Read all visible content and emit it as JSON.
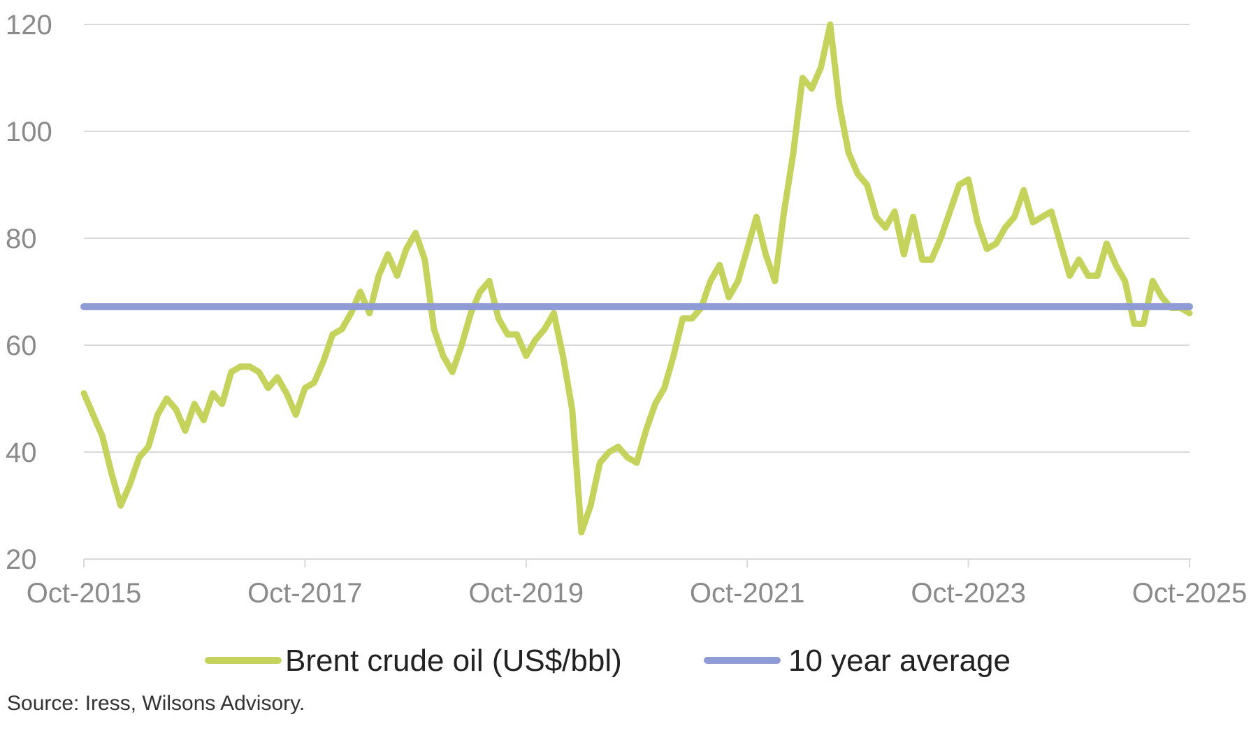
{
  "chart_data": {
    "type": "line",
    "title": "",
    "xlabel": "",
    "ylabel": "",
    "ylim": [
      20,
      120
    ],
    "xlim": [
      "2015-10",
      "2025-10"
    ],
    "yticks": [
      "20",
      "40",
      "60",
      "80",
      "100",
      "120"
    ],
    "xticks": [
      "Oct-2015",
      "Oct-2017",
      "Oct-2019",
      "Oct-2021",
      "Oct-2023",
      "Oct-2025"
    ],
    "grid": true,
    "legend_position": "bottom",
    "series": [
      {
        "name": "Brent crude oil (US$/bbl)",
        "color": "#c5d35d",
        "points": [
          [
            "2015-10",
            51
          ],
          [
            "2015-11",
            47
          ],
          [
            "2015-12",
            43
          ],
          [
            "2016-01",
            36
          ],
          [
            "2016-02",
            30
          ],
          [
            "2016-03",
            34
          ],
          [
            "2016-04",
            39
          ],
          [
            "2016-05",
            41
          ],
          [
            "2016-06",
            47
          ],
          [
            "2016-07",
            50
          ],
          [
            "2016-08",
            48
          ],
          [
            "2016-09",
            44
          ],
          [
            "2016-10",
            49
          ],
          [
            "2016-11",
            46
          ],
          [
            "2016-12",
            51
          ],
          [
            "2017-01",
            49
          ],
          [
            "2017-02",
            55
          ],
          [
            "2017-03",
            56
          ],
          [
            "2017-04",
            56
          ],
          [
            "2017-05",
            55
          ],
          [
            "2017-06",
            52
          ],
          [
            "2017-07",
            54
          ],
          [
            "2017-08",
            51
          ],
          [
            "2017-09",
            47
          ],
          [
            "2017-10",
            52
          ],
          [
            "2017-11",
            53
          ],
          [
            "2017-12",
            57
          ],
          [
            "2018-01",
            62
          ],
          [
            "2018-02",
            63
          ],
          [
            "2018-03",
            66
          ],
          [
            "2018-04",
            70
          ],
          [
            "2018-05",
            66
          ],
          [
            "2018-06",
            73
          ],
          [
            "2018-07",
            77
          ],
          [
            "2018-08",
            73
          ],
          [
            "2018-09",
            78
          ],
          [
            "2018-10",
            81
          ],
          [
            "2018-11",
            76
          ],
          [
            "2018-12",
            63
          ],
          [
            "2019-01",
            58
          ],
          [
            "2019-02",
            55
          ],
          [
            "2019-03",
            60
          ],
          [
            "2019-04",
            66
          ],
          [
            "2019-05",
            70
          ],
          [
            "2019-06",
            72
          ],
          [
            "2019-07",
            65
          ],
          [
            "2019-08",
            62
          ],
          [
            "2019-09",
            62
          ],
          [
            "2019-10",
            58
          ],
          [
            "2019-11",
            61
          ],
          [
            "2019-12",
            63
          ],
          [
            "2020-01",
            66
          ],
          [
            "2020-02",
            58
          ],
          [
            "2020-03",
            48
          ],
          [
            "2020-04",
            25
          ],
          [
            "2020-05",
            30
          ],
          [
            "2020-06",
            38
          ],
          [
            "2020-07",
            40
          ],
          [
            "2020-08",
            41
          ],
          [
            "2020-09",
            39
          ],
          [
            "2020-10",
            38
          ],
          [
            "2020-11",
            44
          ],
          [
            "2020-12",
            49
          ],
          [
            "2021-01",
            52
          ],
          [
            "2021-02",
            58
          ],
          [
            "2021-03",
            65
          ],
          [
            "2021-04",
            65
          ],
          [
            "2021-05",
            67
          ],
          [
            "2021-06",
            72
          ],
          [
            "2021-07",
            75
          ],
          [
            "2021-08",
            69
          ],
          [
            "2021-09",
            72
          ],
          [
            "2021-10",
            78
          ],
          [
            "2021-11",
            84
          ],
          [
            "2021-12",
            77
          ],
          [
            "2022-01",
            72
          ],
          [
            "2022-02",
            85
          ],
          [
            "2022-03",
            96
          ],
          [
            "2022-04",
            110
          ],
          [
            "2022-05",
            108
          ],
          [
            "2022-06",
            112
          ],
          [
            "2022-07",
            120
          ],
          [
            "2022-08",
            105
          ],
          [
            "2022-09",
            96
          ],
          [
            "2022-10",
            92
          ],
          [
            "2022-11",
            90
          ],
          [
            "2022-12",
            84
          ],
          [
            "2023-01",
            82
          ],
          [
            "2023-02",
            85
          ],
          [
            "2023-03",
            77
          ],
          [
            "2023-04",
            84
          ],
          [
            "2023-05",
            76
          ],
          [
            "2023-06",
            76
          ],
          [
            "2023-07",
            80
          ],
          [
            "2023-08",
            85
          ],
          [
            "2023-09",
            90
          ],
          [
            "2023-10",
            91
          ],
          [
            "2023-11",
            83
          ],
          [
            "2023-12",
            78
          ],
          [
            "2024-01",
            79
          ],
          [
            "2024-02",
            82
          ],
          [
            "2024-03",
            84
          ],
          [
            "2024-04",
            89
          ],
          [
            "2024-05",
            83
          ],
          [
            "2024-06",
            84
          ],
          [
            "2024-07",
            85
          ],
          [
            "2024-08",
            79
          ],
          [
            "2024-09",
            73
          ],
          [
            "2024-10",
            76
          ],
          [
            "2024-11",
            73
          ],
          [
            "2024-12",
            73
          ],
          [
            "2025-01",
            79
          ],
          [
            "2025-02",
            75
          ],
          [
            "2025-03",
            72
          ],
          [
            "2025-04",
            64
          ],
          [
            "2025-05",
            64
          ],
          [
            "2025-06",
            72
          ],
          [
            "2025-07",
            69
          ],
          [
            "2025-08",
            67
          ],
          [
            "2025-09",
            67
          ],
          [
            "2025-10",
            66
          ]
        ]
      },
      {
        "name": "10 year average",
        "color": "#8e9bd4",
        "points": [
          [
            "2015-10",
            67.2
          ],
          [
            "2025-10",
            67.2
          ]
        ]
      }
    ]
  },
  "source_text": "Source: Iress, Wilsons Advisory."
}
